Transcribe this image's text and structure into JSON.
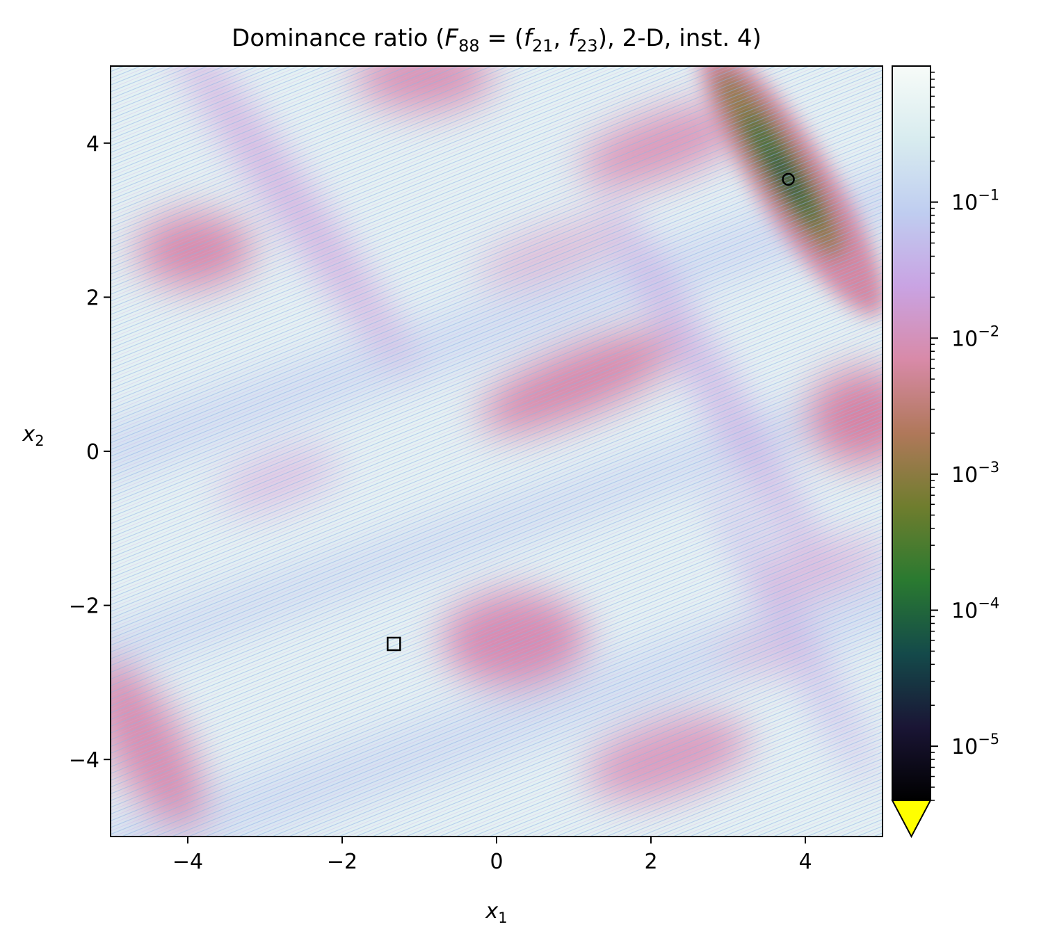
{
  "chart_data": {
    "type": "heatmap",
    "title": "Dominance ratio (F₈₈ = (f₂₁, f₂₃), 2-D, inst. 4)",
    "title_parts": {
      "prefix": "Dominance ratio (",
      "F": "F",
      "F_sub": "88",
      "eq": " = (",
      "f1": "f",
      "f1_sub": "21",
      "comma": ", ",
      "f2": "f",
      "f2_sub": "23",
      "suffix": "), 2-D, inst. 4)"
    },
    "xlabel": {
      "var": "x",
      "sub": "1"
    },
    "ylabel": {
      "var": "x",
      "sub": "2"
    },
    "xlim": [
      -5,
      5
    ],
    "ylim": [
      -5,
      5
    ],
    "xticks": [
      -4,
      -2,
      0,
      2,
      4
    ],
    "yticks": [
      -4,
      -2,
      0,
      2,
      4
    ],
    "xtick_labels": [
      "−4",
      "−2",
      "0",
      "2",
      "4"
    ],
    "ytick_labels": [
      "−4",
      "−2",
      "0",
      "2",
      "4"
    ],
    "colorbar": {
      "scale": "log",
      "range": [
        4e-06,
        1
      ],
      "ticks": [
        {
          "value": 0.1,
          "base": "10",
          "exp": "−1"
        },
        {
          "value": 0.01,
          "base": "10",
          "exp": "−2"
        },
        {
          "value": 0.001,
          "base": "10",
          "exp": "−3"
        },
        {
          "value": 0.0001,
          "base": "10",
          "exp": "−4"
        },
        {
          "value": 1e-05,
          "base": "10",
          "exp": "−5"
        }
      ],
      "extend": "min",
      "under_color": "#ffff00",
      "colormap": "cubehelix-like",
      "colors": [
        "#000000",
        "#1a1535",
        "#144a4a",
        "#2a7a30",
        "#6f7d2e",
        "#b0785a",
        "#d88aa8",
        "#c9a3e3",
        "#bfcdf0",
        "#d8ecef",
        "#f7fbf8"
      ]
    },
    "markers": [
      {
        "type": "square",
        "x": -1.33,
        "y": -2.5
      },
      {
        "type": "circle",
        "x": 3.78,
        "y": 3.53
      }
    ],
    "grid": false
  }
}
